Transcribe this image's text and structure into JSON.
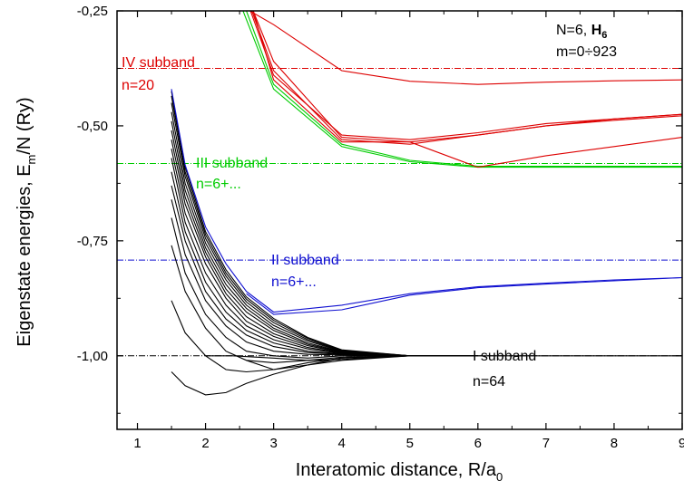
{
  "chart_data": {
    "type": "line",
    "xlabel": {
      "main": "Interatomic distance, R/a",
      "sub": "0"
    },
    "ylabel": {
      "pre": "Eigenstate energies, E",
      "sub": "m",
      "post": "/N (Ry)"
    },
    "xlim": [
      0.7,
      9.0
    ],
    "ylim": [
      -1.16,
      -0.25
    ],
    "xticks": [
      1,
      2,
      3,
      4,
      5,
      6,
      7,
      8,
      9
    ],
    "yticks": [
      -1.0,
      -0.75,
      -0.5,
      -0.25
    ],
    "ytick_labels": [
      "-1,00",
      "-0,75",
      "-0,50",
      "-0,25"
    ],
    "info": {
      "line1_pre": "N=6, ",
      "line1_bold": "H",
      "line1_sub": "6",
      "line2": "m=0÷923"
    },
    "colors": {
      "black": "#000000",
      "blue": "#1010d0",
      "green": "#00cc00",
      "red": "#dd0000"
    },
    "subbands": [
      {
        "label": "IV subband",
        "n_label": "n=20",
        "level": -0.375,
        "color": "#dd0000"
      },
      {
        "label": "III subband",
        "n_label": "n=6+...",
        "level": -0.582,
        "color": "#00cc00"
      },
      {
        "label": "II subband",
        "n_label": "n=6+...",
        "level": -0.792,
        "color": "#1010d0"
      },
      {
        "label": "I subband",
        "n_label": "n=64",
        "level": -1.0,
        "color": "#000000"
      }
    ],
    "series": [
      {
        "color": "#000000",
        "x": [
          1.5,
          1.7,
          2.0,
          2.3,
          2.6,
          3.0,
          3.5,
          4.0,
          5.0,
          6.0,
          9.0
        ],
        "y": [
          -1.035,
          -1.065,
          -1.085,
          -1.08,
          -1.06,
          -1.04,
          -1.02,
          -1.01,
          -1.0,
          -1.0,
          -1.0
        ]
      },
      {
        "color": "#000000",
        "x": [
          1.5,
          1.7,
          2.0,
          2.3,
          2.6,
          3.0,
          3.5,
          4.0,
          5.0,
          6.0
        ],
        "y": [
          -0.88,
          -0.95,
          -1.0,
          -1.03,
          -1.035,
          -1.03,
          -1.015,
          -1.005,
          -1.0,
          -1.0
        ]
      },
      {
        "color": "#000000",
        "x": [
          1.5,
          1.7,
          2.0,
          2.3,
          2.6,
          3.0,
          3.5,
          4.0,
          5.0,
          6.0
        ],
        "y": [
          -0.76,
          -0.86,
          -0.94,
          -0.99,
          -1.01,
          -1.015,
          -1.01,
          -1.003,
          -1.0,
          -1.0
        ]
      },
      {
        "color": "#000000",
        "x": [
          1.5,
          1.7,
          2.0,
          2.3,
          2.6,
          3.0,
          3.5,
          4.0,
          5.0,
          6.0
        ],
        "y": [
          -0.7,
          -0.82,
          -0.91,
          -0.96,
          -0.99,
          -1.0,
          -1.005,
          -1.0,
          -1.0,
          -1.0
        ]
      },
      {
        "color": "#000000",
        "x": [
          1.5,
          1.7,
          2.0,
          2.3,
          2.6,
          3.0,
          3.5,
          4.0,
          5.0,
          6.0
        ],
        "y": [
          -0.66,
          -0.78,
          -0.88,
          -0.935,
          -0.97,
          -0.99,
          -0.997,
          -0.998,
          -1.0,
          -1.0
        ]
      },
      {
        "color": "#000000",
        "x": [
          1.5,
          1.7,
          2.0,
          2.3,
          2.6,
          3.0,
          3.5,
          4.0,
          5.0,
          6.0
        ],
        "y": [
          -0.63,
          -0.75,
          -0.86,
          -0.92,
          -0.955,
          -0.98,
          -0.993,
          -0.997,
          -1.0,
          -1.0
        ]
      },
      {
        "color": "#000000",
        "x": [
          1.5,
          1.7,
          2.0,
          2.3,
          2.6,
          3.0,
          3.5,
          4.0,
          5.0,
          6.0
        ],
        "y": [
          -0.6,
          -0.73,
          -0.84,
          -0.905,
          -0.945,
          -0.972,
          -0.99,
          -0.996,
          -1.0,
          -1.0
        ]
      },
      {
        "color": "#000000",
        "x": [
          1.5,
          1.7,
          2.0,
          2.3,
          2.6,
          3.0,
          3.5,
          4.0,
          5.0,
          6.0
        ],
        "y": [
          -0.57,
          -0.71,
          -0.82,
          -0.89,
          -0.935,
          -0.965,
          -0.985,
          -0.995,
          -1.0,
          -1.0
        ]
      },
      {
        "color": "#000000",
        "x": [
          1.5,
          1.7,
          2.0,
          2.3,
          2.6,
          3.0,
          3.5,
          4.0,
          5.0,
          6.0
        ],
        "y": [
          -0.55,
          -0.69,
          -0.8,
          -0.875,
          -0.925,
          -0.958,
          -0.982,
          -0.994,
          -1.0,
          -1.0
        ]
      },
      {
        "color": "#000000",
        "x": [
          1.5,
          1.7,
          2.0,
          2.3,
          2.6,
          3.0,
          3.5,
          4.0,
          5.0,
          6.0
        ],
        "y": [
          -0.53,
          -0.67,
          -0.785,
          -0.865,
          -0.915,
          -0.952,
          -0.978,
          -0.993,
          -1.0,
          -1.0
        ]
      },
      {
        "color": "#000000",
        "x": [
          1.5,
          1.7,
          2.0,
          2.3,
          2.6,
          3.0,
          3.5,
          4.0,
          5.0,
          6.0
        ],
        "y": [
          -0.51,
          -0.655,
          -0.775,
          -0.855,
          -0.905,
          -0.945,
          -0.975,
          -0.992,
          -1.0,
          -1.0
        ]
      },
      {
        "color": "#000000",
        "x": [
          1.5,
          1.7,
          2.0,
          2.3,
          2.6,
          3.0,
          3.5,
          4.0,
          5.0,
          6.0
        ],
        "y": [
          -0.49,
          -0.64,
          -0.765,
          -0.845,
          -0.897,
          -0.94,
          -0.972,
          -0.991,
          -1.0,
          -1.0
        ]
      },
      {
        "color": "#000000",
        "x": [
          1.5,
          1.7,
          2.0,
          2.3,
          2.6,
          3.0,
          3.5,
          4.0,
          5.0,
          6.0
        ],
        "y": [
          -0.47,
          -0.625,
          -0.755,
          -0.835,
          -0.89,
          -0.934,
          -0.968,
          -0.99,
          -1.0,
          -1.0
        ]
      },
      {
        "color": "#000000",
        "x": [
          1.5,
          1.7,
          2.0,
          2.3,
          2.6,
          3.0,
          3.5,
          4.0,
          5.0,
          6.0
        ],
        "y": [
          -0.45,
          -0.61,
          -0.745,
          -0.827,
          -0.883,
          -0.928,
          -0.965,
          -0.989,
          -1.0,
          -1.0
        ]
      },
      {
        "color": "#000000",
        "x": [
          1.5,
          1.7,
          2.0,
          2.3,
          2.6,
          3.0,
          3.5,
          4.0,
          5.0,
          6.0
        ],
        "y": [
          -0.435,
          -0.6,
          -0.737,
          -0.82,
          -0.877,
          -0.923,
          -0.962,
          -0.988,
          -1.0,
          -1.0
        ]
      },
      {
        "color": "#000000",
        "x": [
          1.5,
          1.7,
          2.0,
          2.3,
          2.6,
          3.0,
          3.5,
          4.0,
          5.0,
          6.0
        ],
        "y": [
          -0.425,
          -0.59,
          -0.73,
          -0.813,
          -0.872,
          -0.919,
          -0.96,
          -0.987,
          -1.0,
          -1.0
        ]
      },
      {
        "color": "#000000",
        "x": [
          2.0,
          2.4,
          3.0,
          3.5,
          4.0,
          5.0,
          6.0
        ],
        "y": [
          -1.0,
          -1.0,
          -1.005,
          -1.01,
          -1.008,
          -1.0,
          -1.0
        ]
      },
      {
        "color": "#000000",
        "x": [
          2.6,
          3.0,
          3.5,
          4.0,
          5.0,
          6.0
        ],
        "y": [
          -1.01,
          -1.03,
          -1.02,
          -1.005,
          -1.0,
          -1.0
        ]
      },
      {
        "color": "#1010d0",
        "x": [
          1.5,
          1.7,
          2.0,
          2.3,
          2.6,
          3.0,
          4.0,
          5.0,
          6.0,
          7.0,
          8.0,
          9.0
        ],
        "y": [
          -0.42,
          -0.585,
          -0.72,
          -0.8,
          -0.86,
          -0.905,
          -0.89,
          -0.865,
          -0.85,
          -0.842,
          -0.835,
          -0.83
        ]
      },
      {
        "color": "#1010d0",
        "x": [
          2.6,
          3.0,
          4.0,
          5.0,
          6.0,
          7.0,
          8.0,
          9.0
        ],
        "y": [
          -0.865,
          -0.91,
          -0.9,
          -0.868,
          -0.852,
          -0.844,
          -0.837,
          -0.83
        ]
      },
      {
        "color": "#00cc00",
        "x": [
          2.55,
          3.0,
          4.0,
          5.0,
          6.0,
          7.0,
          8.0,
          9.0
        ],
        "y": [
          -0.25,
          -0.42,
          -0.545,
          -0.578,
          -0.59,
          -0.59,
          -0.59,
          -0.59
        ]
      },
      {
        "color": "#00cc00",
        "x": [
          2.6,
          3.0,
          4.0,
          5.0,
          6.0,
          7.0,
          8.0,
          9.0
        ],
        "y": [
          -0.25,
          -0.41,
          -0.54,
          -0.575,
          -0.588,
          -0.588,
          -0.588,
          -0.588
        ]
      },
      {
        "color": "#dd0000",
        "x": [
          2.65,
          3.0,
          4.0,
          5.0,
          6.0,
          7.0,
          8.0,
          9.0
        ],
        "y": [
          -0.25,
          -0.28,
          -0.38,
          -0.403,
          -0.41,
          -0.405,
          -0.402,
          -0.4
        ]
      },
      {
        "color": "#dd0000",
        "x": [
          2.7,
          3.0,
          4.0,
          5.0,
          6.0,
          7.0,
          8.0,
          9.0
        ],
        "y": [
          -0.25,
          -0.36,
          -0.525,
          -0.535,
          -0.52,
          -0.5,
          -0.485,
          -0.475
        ]
      },
      {
        "color": "#dd0000",
        "x": [
          2.68,
          3.0,
          4.0,
          5.0,
          6.0,
          7.0,
          8.0,
          9.0
        ],
        "y": [
          -0.25,
          -0.38,
          -0.53,
          -0.54,
          -0.52,
          -0.5,
          -0.488,
          -0.478
        ]
      },
      {
        "color": "#dd0000",
        "x": [
          2.66,
          3.0,
          4.0,
          5.0,
          6.0,
          7.0,
          8.0,
          9.0
        ],
        "y": [
          -0.25,
          -0.39,
          -0.52,
          -0.53,
          -0.515,
          -0.495,
          -0.485,
          -0.475
        ]
      },
      {
        "color": "#dd0000",
        "x": [
          2.7,
          3.0,
          4.0,
          5.0,
          6.0,
          7.0,
          8.0,
          9.0
        ],
        "y": [
          -0.25,
          -0.4,
          -0.535,
          -0.535,
          -0.59,
          -0.565,
          -0.545,
          -0.525
        ]
      }
    ]
  }
}
